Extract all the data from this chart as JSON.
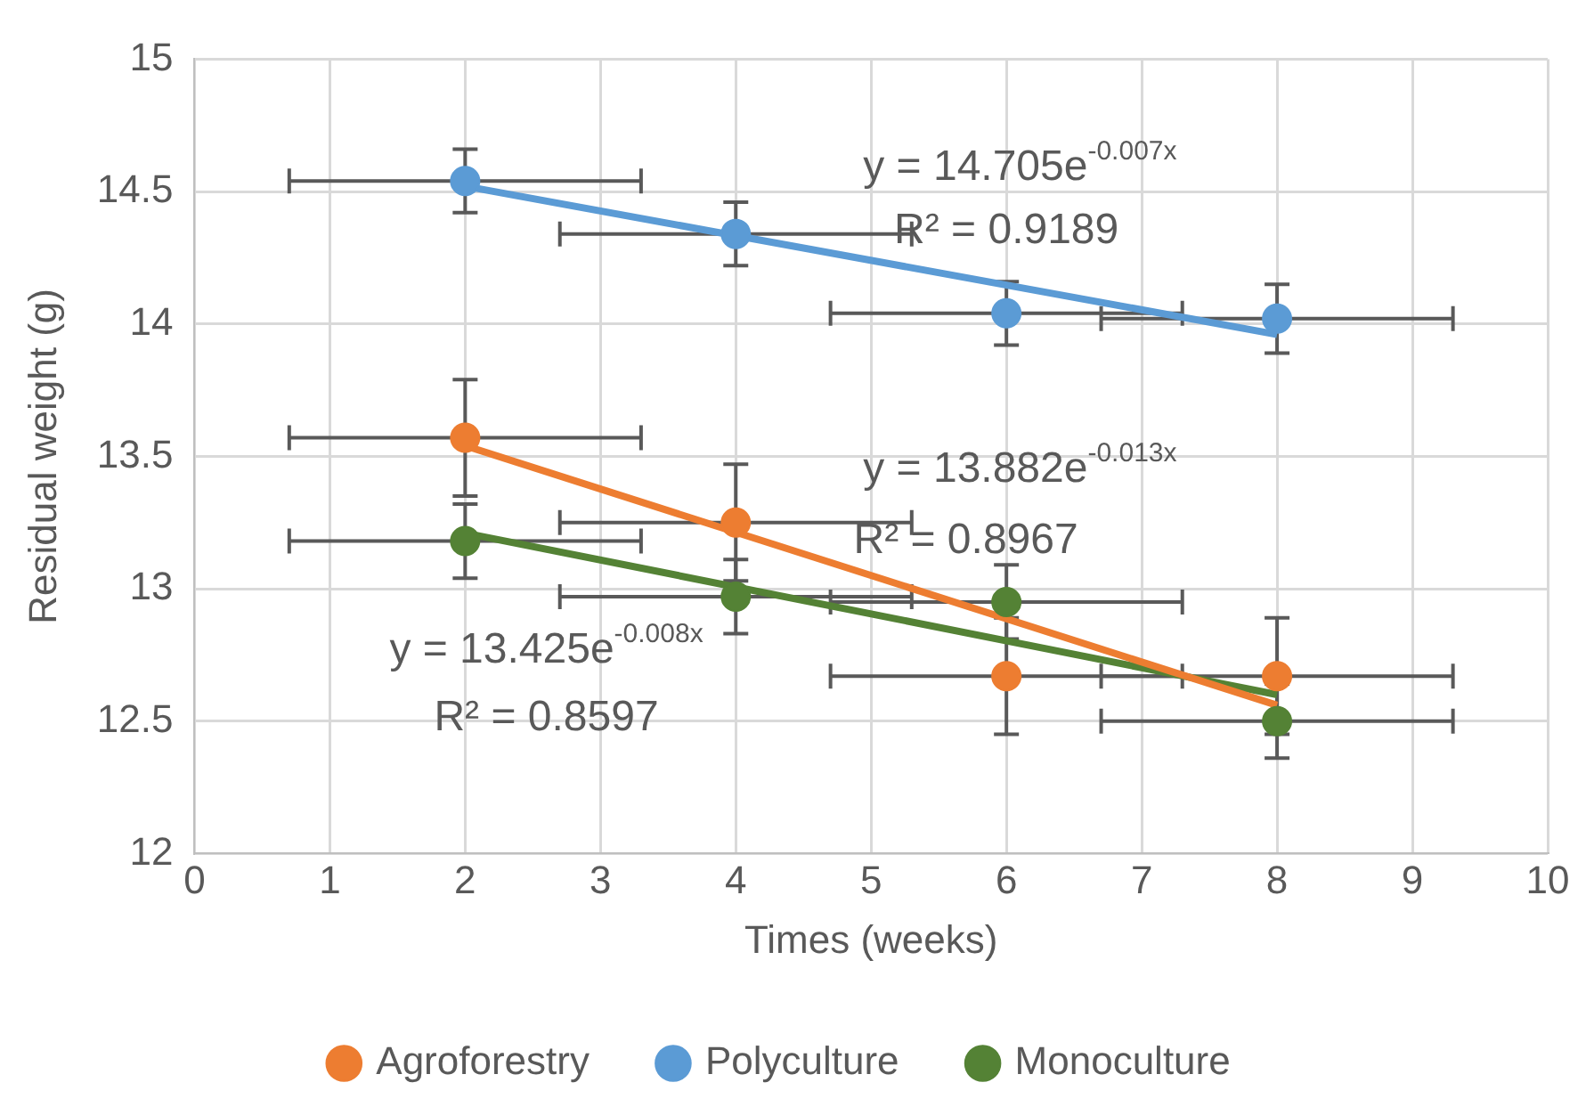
{
  "chart_data": {
    "type": "scatter",
    "xlabel": "Times (weeks)",
    "ylabel": "Residual weight (g)",
    "xlim": [
      0,
      10
    ],
    "xticks": [
      0,
      1,
      2,
      3,
      4,
      5,
      6,
      7,
      8,
      9,
      10
    ],
    "ylim": [
      12,
      15
    ],
    "yticks": [
      12,
      12.5,
      13,
      13.5,
      14,
      14.5,
      15
    ],
    "grid": true,
    "legend": "bottom",
    "series": [
      {
        "name": "Agroforestry",
        "type": "scatter",
        "marker": "circle",
        "color": "#ed7d31",
        "x": [
          2,
          4,
          6,
          8
        ],
        "values": [
          13.57,
          13.25,
          12.67,
          12.67
        ],
        "errors": [
          0.22,
          0.22,
          0.22,
          0.22
        ],
        "xerrors": [
          1.3,
          1.3,
          1.3,
          1.3
        ]
      },
      {
        "name": "Polyculture",
        "type": "scatter",
        "marker": "circle",
        "color": "#5b9bd5",
        "x": [
          2,
          4,
          6,
          8
        ],
        "values": [
          14.54,
          14.34,
          14.04,
          14.02
        ],
        "errors": [
          0.12,
          0.12,
          0.12,
          0.13
        ],
        "xerrors": [
          1.3,
          1.3,
          1.3,
          1.3
        ]
      },
      {
        "name": "Monoculture",
        "type": "scatter",
        "marker": "circle",
        "color": "#548235",
        "x": [
          2,
          4,
          6,
          8
        ],
        "values": [
          13.18,
          12.97,
          12.95,
          12.5
        ],
        "errors": [
          0.14,
          0.14,
          0.14,
          0.14
        ],
        "xerrors": [
          1.3,
          1.3,
          1.3,
          1.3
        ]
      },
      {
        "type": "line",
        "marker": "none",
        "color": "#5b9bd5",
        "x": [
          2,
          8
        ],
        "values": [
          14.52,
          13.96
        ]
      },
      {
        "type": "line",
        "marker": "none",
        "color": "#ed7d31",
        "x": [
          2,
          8
        ],
        "values": [
          13.54,
          12.56
        ]
      },
      {
        "type": "line",
        "marker": "none",
        "color": "#548235",
        "x": [
          2,
          8
        ],
        "values": [
          13.21,
          12.6
        ]
      }
    ],
    "annotations": [
      "y = 14.705e$^{-0.007x}$",
      "R² = 0.9189",
      "y = 13.882e$^{-0.013x}$",
      "R² = 0.8967",
      "y = 13.425e$^{-0.008x}$",
      "R² = 0.8597"
    ]
  }
}
